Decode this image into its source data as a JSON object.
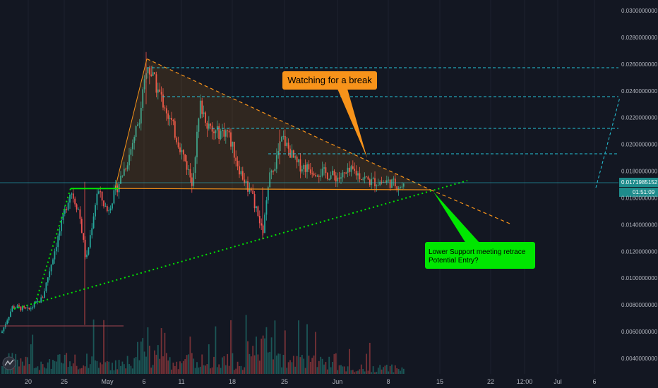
{
  "chart_data": {
    "type": "candlestick",
    "symbol_pair": "",
    "x_ticks": [
      "20",
      "25",
      "May",
      "6",
      "11",
      "18",
      "25",
      "Jun",
      "8",
      "15",
      "22",
      "12:00",
      "Jul",
      "6"
    ],
    "y_ticks": [
      "0.0300000000",
      "0.0280000000",
      "0.0260000000",
      "0.0240000000",
      "0.0220000000",
      "0.0200000000",
      "0.0180000000",
      "0.0160000000",
      "0.0140000000",
      "0.0120000000",
      "0.0100000000",
      "0.0080000000",
      "0.0060000000",
      "0.0040000000"
    ],
    "ylim": [
      0.0036,
      0.0302
    ],
    "last_price": "0.0171985152",
    "countdown": "01:51:09",
    "annotations": {
      "watch": "Watching for a break",
      "support_line1": "Lower Support meeting retrace",
      "support_line2": "Potential Entry?"
    },
    "key_points": {
      "peak_high": 0.0266,
      "triangle_apex": 0.0166,
      "flat_support": 0.0167,
      "dip_low": 0.0131
    },
    "colors": {
      "background": "#131722",
      "up": "#26a69a",
      "down": "#ef5350",
      "orange": "#f7931a",
      "green": "#00e600",
      "teal": "#26c6da",
      "last_price_bg": "#1e8c8c"
    }
  }
}
